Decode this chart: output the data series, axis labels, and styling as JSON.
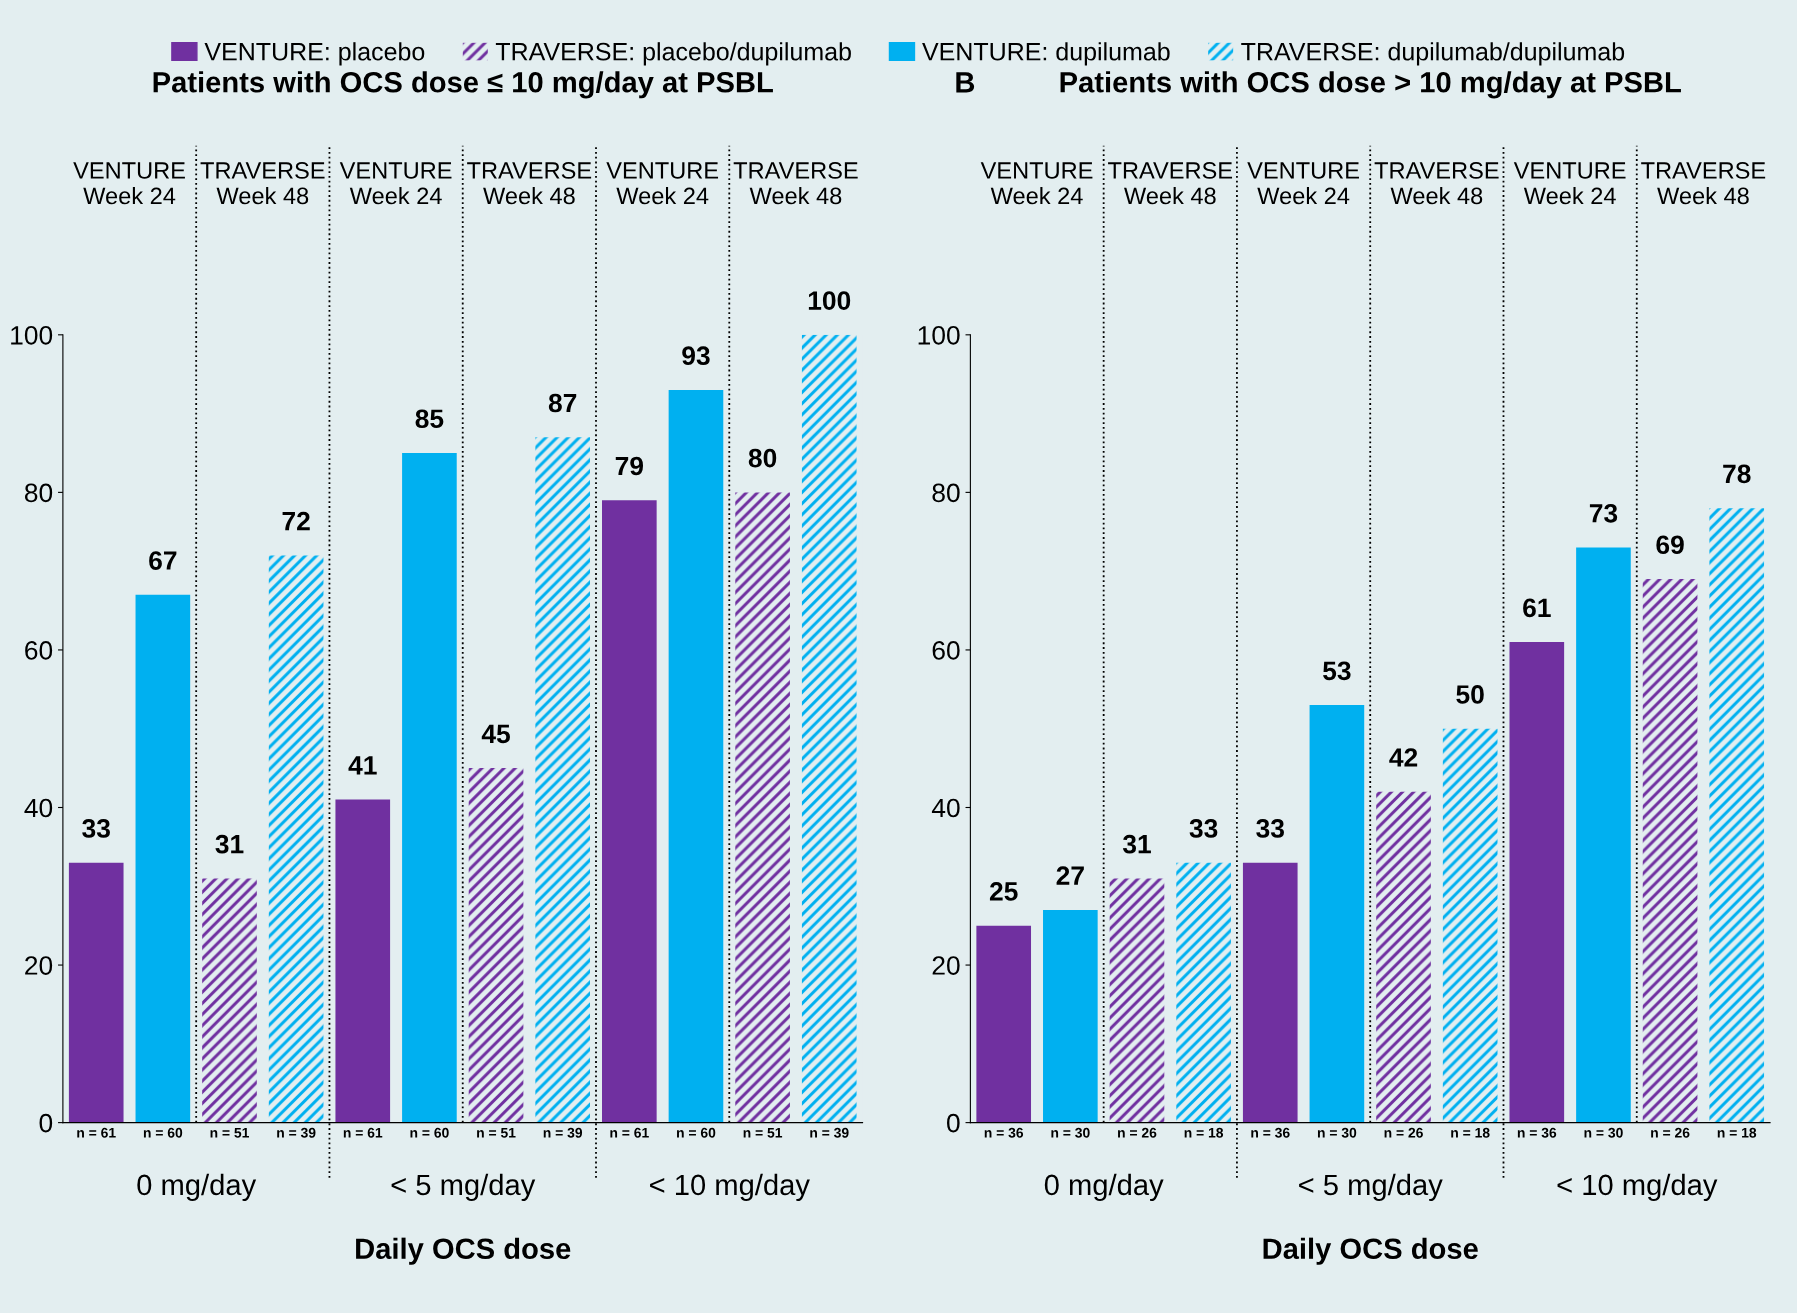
{
  "chart_data": [
    {
      "type": "bar",
      "title": "Patients with OCS dose ≤ 10 mg/day at PSBL",
      "xlabel": "Daily OCS dose",
      "categories": [
        "n = 61",
        "n = 60",
        "n = 51",
        "n = 39",
        "n = 61",
        "n = 60",
        "n = 51",
        "n = 39",
        "n = 61",
        "n = 60",
        "n = 51",
        "n = 39"
      ],
      "series": [
        {
          "name": "VENTURE: placebo",
          "color": "#7030a0",
          "values": [
            33,
            null,
            null,
            null,
            41,
            null,
            null,
            null,
            79,
            null,
            null,
            null
          ]
        },
        {
          "name": "TRAVERSE: placebo/dupilumab",
          "color": "#7030a0",
          "values": [
            null,
            null,
            31,
            null,
            null,
            null,
            45,
            null,
            null,
            null,
            80,
            null
          ]
        },
        {
          "name": "VENTURE: dupilumab",
          "color": "#00b0f0",
          "values": [
            null,
            67,
            null,
            null,
            null,
            85,
            null,
            null,
            null,
            93,
            null,
            null
          ]
        },
        {
          "name": "TRAVERSE: dupilumab/dupilumab",
          "color": "#00b0f0",
          "values": [
            null,
            null,
            null,
            72,
            null,
            null,
            null,
            87,
            null,
            null,
            null,
            100
          ]
        }
      ],
      "annotations": [
        "VENTURE\nWeek 24",
        "TRAVERSE\nWeek 48",
        "VENTURE\nWeek 24",
        "TRAVERSE\nWeek 48",
        "VENTURE\nWeek 24",
        "TRAVERSE\nWeek 48",
        "0 mg/day",
        "< 5 mg/day",
        "< 10 mg/day"
      ],
      "ylim": [
        0,
        100
      ],
      "yticks": [
        0,
        20,
        40,
        60,
        80,
        100
      ],
      "data_labels": true,
      "grid": false,
      "legend": "top"
    },
    {
      "type": "bar",
      "title": "Patients with OCS dose > 10 mg/day at PSBL",
      "xlabel": "Daily OCS dose",
      "categories": [
        "n = 36",
        "n = 30",
        "n = 26",
        "n = 18",
        "n = 36",
        "n = 30",
        "n = 26",
        "n = 18",
        "n = 36",
        "n = 30",
        "n = 26",
        "n = 18"
      ],
      "series": [
        {
          "color": "#7030a0",
          "values": [
            25,
            null,
            null,
            null,
            33,
            null,
            null,
            null,
            61,
            null,
            null,
            null
          ]
        },
        {
          "color": "#7030a0",
          "values": [
            null,
            null,
            31,
            null,
            null,
            null,
            42,
            null,
            null,
            null,
            69,
            null
          ]
        },
        {
          "color": "#00b0f0",
          "values": [
            null,
            27,
            null,
            null,
            null,
            53,
            null,
            null,
            null,
            73,
            null,
            null
          ]
        },
        {
          "color": "#00b0f0",
          "values": [
            null,
            null,
            null,
            33,
            null,
            null,
            null,
            50,
            null,
            null,
            null,
            78
          ]
        }
      ],
      "annotations": [
        "VENTURE\nWeek 24",
        "TRAVERSE\nWeek 48",
        "VENTURE\nWeek 24",
        "TRAVERSE\nWeek 48",
        "VENTURE\nWeek 24",
        "TRAVERSE\nWeek 48",
        "0 mg/day",
        "< 5 mg/day",
        "< 10 mg/day",
        "B"
      ],
      "ylim": [
        0,
        100
      ],
      "yticks": [
        0,
        20,
        40,
        60,
        80,
        100
      ],
      "data_labels": true,
      "grid": false
    }
  ]
}
